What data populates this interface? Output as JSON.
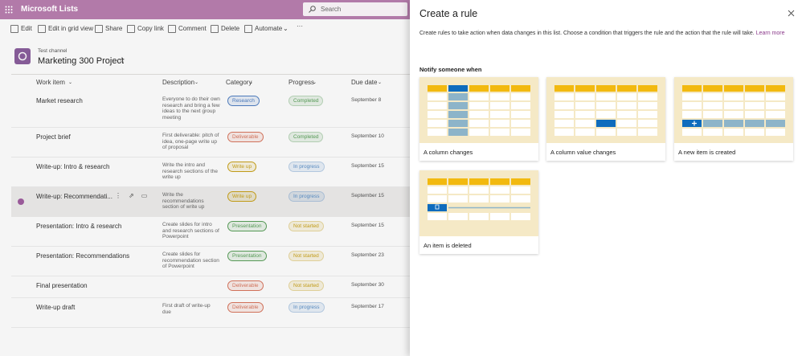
{
  "app": {
    "name": "Microsoft Lists",
    "search": "Search"
  },
  "commands": [
    "Edit",
    "Edit in grid view",
    "Share",
    "Copy link",
    "Comment",
    "Delete",
    "Automate"
  ],
  "header": {
    "channel": "Test channel",
    "title": "Marketing 300 Project"
  },
  "table": {
    "columns": [
      "Work item",
      "Description",
      "Category",
      "Progress",
      "Due date"
    ],
    "rows": [
      {
        "work_item": "Market research",
        "description": "Everyone to do their own research and bring a few ideas to the next group meeting",
        "category": "Research",
        "category_color": "#4f7ec2",
        "progress": "Completed",
        "progress_color": "#5aa05a",
        "due_date": "September 8"
      },
      {
        "work_item": "Project brief",
        "description": "First deliverable: pitch of idea, one-page write up of proposal",
        "category": "Deliverable",
        "category_color": "#d9765e",
        "progress": "Completed",
        "progress_color": "#5aa05a",
        "due_date": "September 10"
      },
      {
        "work_item": "Write-up: Intro & research",
        "description": "Write the intro and research sections of the write up",
        "category": "Write up",
        "category_color": "#c9a21a",
        "progress": "In progress",
        "progress_color": "#5a8fc7",
        "due_date": "September 15"
      },
      {
        "work_item": "Write-up: Recommendati...",
        "description": "Write the recommendations section of write up",
        "category": "Write up",
        "category_color": "#c9a21a",
        "progress": "In progress",
        "progress_color": "#5a8fc7",
        "due_date": "September 15"
      },
      {
        "work_item": "Presentation: Intro & research",
        "description": "Create slides for intro and research sections of Powerpoint",
        "category": "Presentation",
        "category_color": "#5aa05a",
        "progress": "Not started",
        "progress_color": "#c9a21a",
        "due_date": "September 15"
      },
      {
        "work_item": "Presentation: Recommendations",
        "description": "Create slides for recommendation section of Powerpoint",
        "category": "Presentation",
        "category_color": "#5aa05a",
        "progress": "Not started",
        "progress_color": "#c9a21a",
        "due_date": "September 23"
      },
      {
        "work_item": "Final presentation",
        "description": null,
        "category": "Deliverable",
        "category_color": "#d9765e",
        "progress": "Not started",
        "progress_color": "#c9a21a",
        "due_date": "September 30"
      },
      {
        "work_item": "Write-up draft",
        "description": "First draft of write-up due",
        "category": "Deliverable",
        "category_color": "#d9765e",
        "progress": "In progress",
        "progress_color": "#5a8fc7",
        "due_date": "September 17"
      }
    ]
  },
  "panel": {
    "title": "Create a rule",
    "description": "Create rules to take action when data changes in this list. Choose a condition that triggers the rule and the action that the rule will take.",
    "learn_more": "Learn more",
    "section": "Notify someone when",
    "options": [
      "A column changes",
      "A column value changes",
      "A new item is created",
      "An item is deleted"
    ]
  }
}
